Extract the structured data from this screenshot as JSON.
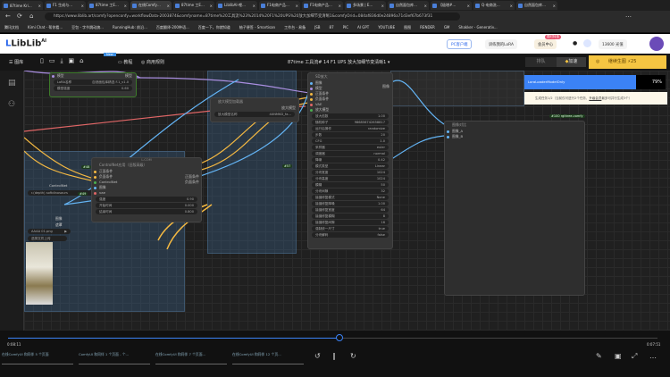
{
  "browser": {
    "tabs": [
      "87time Kri…",
      "F1 生成与…",
      "87time 工E…",
      "在线Comfy…",
      "87time 工E…",
      "LiblibAI-哩…",
      "F1电商产品…",
      "F1电商产品…",
      "多场景 | E…",
      "自然面包库…",
      "【极增#…",
      "Q-电商洗…",
      "自然面包库…"
    ],
    "active_tab": 3,
    "url": "https://www.liblib.art/comfy?openconfy=workflowData-2003874&comfyname=87time%20工具流%23%2014%20F1%20UPS%20放大加细节变清晰1&comfyOrid=084af836d0e24896a71d3ef67b673f31",
    "bookmarks": [
      "腾讯文档",
      "Kimi Chat - 帮你看...",
      "豆包 - 字节跳动旗...",
      "RunningHub: 前沿...",
      "百度翻译-200种语...",
      "百度一下，你就知道",
      "柚子便签 - Smartisan",
      "工作台 - 易备",
      "JSB",
      "87",
      "PIC",
      "AI GPT",
      "YOUTUBE",
      "图图",
      "RENDER",
      "GM",
      "Shakker - Generativ..."
    ]
  },
  "header": {
    "logo": "LibLib",
    "logo_sup": "AI",
    "pc_client": "PC客户端",
    "train_lora": "训练我的LoRA",
    "member": "会员中心",
    "member_badge": "限时特惠",
    "credits": "13600 光值"
  },
  "toolbar": {
    "items": [
      "图库",
      "教程",
      "商用规则"
    ],
    "new_badge": "New",
    "title": "87time 工具流# 14 F1 UPS 放大加细节变清晰1",
    "queue_label": "排队",
    "accelerate": "加速",
    "generate": "继续生图",
    "generate_cost": "25"
  },
  "progress": {
    "label": "LoraLoaderModelOnly",
    "percent": 79,
    "percent_text": "79%",
    "tip": "生成任务1/2（当前仅可进行2个任务，",
    "tip_link": "升级会员",
    "tip_end": "最多可并行生成3个）"
  },
  "nodes": {
    "lora": {
      "in": "模型",
      "out": "模型",
      "widgets": [
        [
          "LoRA名称",
          "自然面包库精选 F.1_v1.0"
        ],
        [
          "模型强度",
          "0.60"
        ]
      ]
    },
    "controlnet": {
      "id": "#50",
      "badge": "#58",
      "title": "ControlNet应用（旧版高级）",
      "header": "L.COM",
      "inputs": [
        "正面条件",
        "负面条件",
        "ControlNet",
        "图像",
        "vae"
      ],
      "outputs": [
        "正面条件",
        "负面条件"
      ],
      "widgets": [
        [
          "强度",
          "0.90"
        ],
        [
          "开始时间",
          "0.000"
        ],
        [
          "结束时间",
          "0.800"
        ]
      ]
    },
    "left_partial": {
      "badge": "#48",
      "port": "ControlNet",
      "widget": "r.(depth) softdinosaurs",
      "badge2": "#49",
      "out1": "图像",
      "out2": "遮罩"
    },
    "load_image": {
      "file": "AAAA 01.png",
      "upload": "选择文件上传"
    },
    "upscale_loader": {
      "badge": "#57",
      "title": "放大模型加载器",
      "out": "放大模型",
      "widget": [
        "放大模型名称",
        "4XNMKD_fa…"
      ]
    },
    "sampler": {
      "title": "SD放大",
      "inputs": [
        "图像",
        "模型",
        "正面条件",
        "负面条件",
        "VAE",
        "放大模型"
      ],
      "out": "图像",
      "widgets": [
        [
          "放大倍数",
          "1.00"
        ],
        [
          "随机种子",
          "986856742658817"
        ],
        [
          "运行后操作",
          "randomize"
        ],
        [
          "步数",
          "20"
        ],
        [
          "CFG",
          "1.0"
        ],
        [
          "采样器",
          "euler"
        ],
        [
          "调度器",
          "normal"
        ],
        [
          "降噪",
          "0.42"
        ],
        [
          "模式类型",
          "Linear"
        ],
        [
          "分块宽度",
          "1024"
        ],
        [
          "分块高度",
          "1024"
        ],
        [
          "模糊",
          "50"
        ],
        [
          "分块间隙",
          "32"
        ],
        [
          "接缝修复模式",
          "None"
        ],
        [
          "接缝修复降噪",
          "1.00"
        ],
        [
          "接缝修复宽度",
          "64"
        ],
        [
          "接缝修复模糊",
          "8"
        ],
        [
          "接缝修复间隙",
          "16"
        ],
        [
          "强制统一尺寸",
          "true"
        ],
        [
          "分块解码",
          "false"
        ]
      ]
    },
    "compare": {
      "badge": "#100 rgthree-comfy",
      "title": "图像对比",
      "inputs": [
        "图像_A",
        "图像_B"
      ]
    }
  },
  "player": {
    "elapsed": "0:08:11",
    "remaining": "0:07:51",
    "position_fraction": 0.51
  },
  "taskbar": [
    "在线ComfyUI 和同伴 5 个页面",
    "ComfyUI 和同伴 1 个页面 - 个...",
    "在线ComfyUI 和同伴 7 个页面...",
    "在线ComfyUI 和同伴 12 个页..."
  ],
  "colors": {
    "accent": "#2563eb",
    "progress": "#3b82f6",
    "generate": "#f5c542",
    "image_link": "#64b5f6",
    "latent": "#ff9cf9",
    "clip": "#f5b942",
    "vae": "#e06666"
  }
}
